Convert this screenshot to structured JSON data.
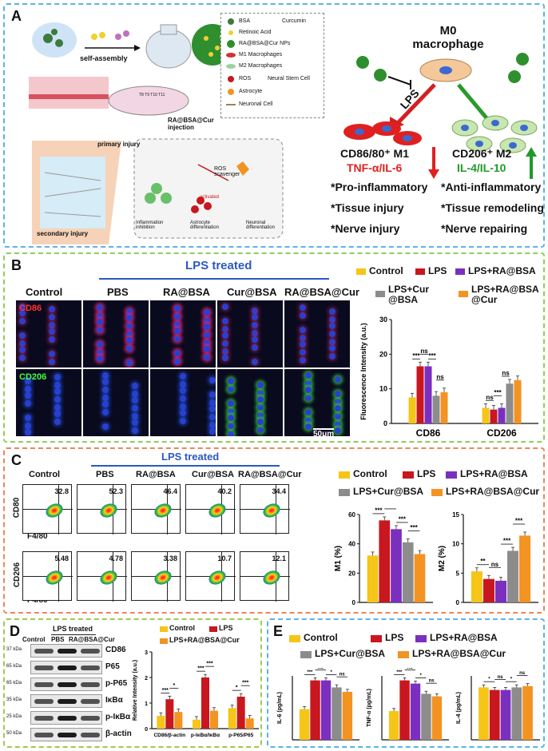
{
  "panel_a": {
    "label": "A",
    "assembly": {
      "arrow_label": "self-assembly",
      "legend": [
        "BSA",
        "Curcumin",
        "Retinoic Acid",
        "RA@BSA@Cur NPs",
        "M1 Macrophages",
        "M2 Macrophages",
        "ROS",
        "Neural Stem Cell",
        "Astrocyte",
        "Neuronal Cell"
      ],
      "mouse_label": "T8 T9 T10 T11",
      "injection": "RA@BSA@Cur injection",
      "primary": "primary injury",
      "secondary": "secondary injury",
      "scavenger": "ROS scavenger",
      "activated": "activated",
      "inflammation": "Inflammation inhibition",
      "astro_diff": "Astrocyte differentiation",
      "neuro_diff": "Neuronal differentiation"
    },
    "m0": "M0 macrophage",
    "lps": "LPS",
    "m1": {
      "title": "CD86/80⁺ M1",
      "cytokines": "TNF-α/IL-6",
      "items": [
        "*Pro-inflammatory",
        "*Tissue injury",
        "*Nerve injury"
      ]
    },
    "m2": {
      "title": "CD206⁺ M2",
      "cytokines": "IL-4/IL-10",
      "items": [
        "*Anti-inflammatory",
        "*Tissue remodeling",
        "*Nerve repairing"
      ]
    }
  },
  "panel_b": {
    "label": "B",
    "lps_treated": "LPS treated",
    "columns": [
      "Control",
      "PBS",
      "RA@BSA",
      "Cur@BSA",
      "RA@BSA@Cur"
    ],
    "rows": [
      "CD86",
      "CD206"
    ],
    "scale_bar": "50μm",
    "legend": [
      "Control",
      "LPS",
      "LPS+RA@BSA",
      "LPS+Cur @BSA",
      "LPS+RA@BSA @Cur"
    ]
  },
  "panel_c": {
    "label": "C",
    "lps_treated": "LPS treated",
    "columns": [
      "Control",
      "PBS",
      "RA@BSA",
      "Cur@BSA",
      "RA@BSA@Cur"
    ],
    "row1_axis": "CD80",
    "row2_axis": "CD206",
    "x_axis": "F4/80",
    "row1_values": [
      "32.8",
      "52.3",
      "46.4",
      "40.2",
      "34.4"
    ],
    "row2_values": [
      "5.48",
      "4.78",
      "3.38",
      "10.7",
      "12.1"
    ],
    "legend": [
      "Control",
      "LPS",
      "LPS+RA@BSA",
      "LPS+Cur@BSA",
      "LPS+RA@BSA@Cur"
    ]
  },
  "panel_d": {
    "label": "D",
    "lps_treated": "LPS treated",
    "columns": [
      "Control",
      "PBS",
      "RA@BSA@Cur"
    ],
    "bands": [
      {
        "kda": "37 kDa",
        "name": "CD86"
      },
      {
        "kda": "65 kDa",
        "name": "P65"
      },
      {
        "kda": "65 kDa",
        "name": "p-P65"
      },
      {
        "kda": "35 kDa",
        "name": "IκBα"
      },
      {
        "kda": "25 kDa",
        "name": "p-IκBα"
      },
      {
        "kda": "50 kDa",
        "name": "β-actin"
      }
    ],
    "legend": [
      "Control",
      "LPS",
      "LPS+RA@BSA@Cur"
    ]
  },
  "panel_e": {
    "label": "E",
    "legend": [
      "Control",
      "LPS",
      "LPS+RA@BSA",
      "LPS+Cur@BSA",
      "LPS+RA@BSA@Cur"
    ]
  },
  "colors": {
    "control": "#f5c518",
    "lps": "#c8171e",
    "ra": "#7b2fbf",
    "cur": "#8c8c8c",
    "rabsacur": "#f39322"
  },
  "chart_data": [
    {
      "type": "bar",
      "id": "B-fluorescence",
      "ylabel": "Fluorescence Intensity (a.u.)",
      "ylim": [
        0,
        30
      ],
      "yticks": [
        0,
        10,
        20,
        30
      ],
      "categories": [
        "CD86",
        "CD206"
      ],
      "series": [
        {
          "name": "Control",
          "values": [
            7.5,
            4.5
          ]
        },
        {
          "name": "LPS",
          "values": [
            16.5,
            4
          ]
        },
        {
          "name": "LPS+RA@BSA",
          "values": [
            16.5,
            4.5
          ]
        },
        {
          "name": "LPS+Cur @BSA",
          "values": [
            8,
            11.5
          ]
        },
        {
          "name": "LPS+RA@BSA @Cur",
          "values": [
            9,
            12.5
          ]
        }
      ],
      "annotations": [
        "***",
        "ns",
        "***",
        "ns",
        "ns",
        "***",
        "ns"
      ]
    },
    {
      "type": "bar",
      "id": "C-M1",
      "ylabel": "M1 (%)",
      "ylim": [
        0,
        60
      ],
      "yticks": [
        0,
        20,
        40,
        60
      ],
      "categories": [
        "M1"
      ],
      "series": [
        {
          "name": "Control",
          "values": [
            32
          ]
        },
        {
          "name": "LPS",
          "values": [
            56
          ]
        },
        {
          "name": "LPS+RA@BSA",
          "values": [
            50
          ]
        },
        {
          "name": "LPS+Cur@BSA",
          "values": [
            41
          ]
        },
        {
          "name": "LPS+RA@BSA@Cur",
          "values": [
            33
          ]
        }
      ],
      "annotations": [
        "***",
        "*",
        "***",
        "***"
      ]
    },
    {
      "type": "bar",
      "id": "C-M2",
      "ylabel": "M2 (%)",
      "ylim": [
        0,
        15
      ],
      "yticks": [
        0,
        5,
        10,
        15
      ],
      "categories": [
        "M2"
      ],
      "series": [
        {
          "name": "Control",
          "values": [
            5.3
          ]
        },
        {
          "name": "LPS",
          "values": [
            4.0
          ]
        },
        {
          "name": "LPS+RA@BSA",
          "values": [
            3.7
          ]
        },
        {
          "name": "LPS+Cur@BSA",
          "values": [
            8.8
          ]
        },
        {
          "name": "LPS+RA@BSA@Cur",
          "values": [
            11.4
          ]
        }
      ],
      "annotations": [
        "**",
        "ns",
        "***",
        "***"
      ]
    },
    {
      "type": "bar",
      "id": "D-relative",
      "ylabel": "Relative Intensity (a.u.)",
      "ylim": [
        0,
        3
      ],
      "yticks": [
        0,
        1,
        2,
        3
      ],
      "categories": [
        "CD86/β-actin",
        "p-IκBα/IκBα",
        "p-P65/P65"
      ],
      "series": [
        {
          "name": "Control",
          "values": [
            0.5,
            0.35,
            0.8
          ]
        },
        {
          "name": "LPS",
          "values": [
            1.15,
            2.0,
            1.25
          ]
        },
        {
          "name": "LPS+RA@BSA@Cur",
          "values": [
            0.65,
            0.7,
            0.4
          ]
        }
      ],
      "annotations": [
        "***",
        "*",
        "***",
        "***",
        "*",
        "***"
      ]
    },
    {
      "type": "bar",
      "id": "E-IL6",
      "ylabel": "IL-6 (pg/mL)",
      "ylim": [
        0,
        100
      ],
      "yticks": [],
      "categories": [
        "IL-6"
      ],
      "series": [
        {
          "name": "Control",
          "values": [
            48
          ]
        },
        {
          "name": "LPS",
          "values": [
            93
          ]
        },
        {
          "name": "LPS+RA@BSA",
          "values": [
            93
          ]
        },
        {
          "name": "LPS+Cur@BSA",
          "values": [
            82
          ]
        },
        {
          "name": "LPS+RA@BSA@Cur",
          "values": [
            75
          ]
        }
      ],
      "annotations": [
        "***",
        "ns",
        "*",
        "ns"
      ]
    },
    {
      "type": "bar",
      "id": "E-TNF",
      "ylabel": "TNF-α (pg/mL)",
      "ylim": [
        0,
        100
      ],
      "yticks": [],
      "categories": [
        "TNF-α"
      ],
      "series": [
        {
          "name": "Control",
          "values": [
            45
          ]
        },
        {
          "name": "LPS",
          "values": [
            93
          ]
        },
        {
          "name": "LPS+RA@BSA",
          "values": [
            88
          ]
        },
        {
          "name": "LPS+Cur@BSA",
          "values": [
            72
          ]
        },
        {
          "name": "LPS+RA@BSA@Cur",
          "values": [
            68
          ]
        }
      ],
      "annotations": [
        "***",
        "ns",
        "*",
        "ns"
      ]
    },
    {
      "type": "bar",
      "id": "E-IL4",
      "ylabel": "IL-4 (pg/mL)",
      "ylim": [
        0,
        100
      ],
      "yticks": [],
      "categories": [
        "IL-4"
      ],
      "series": [
        {
          "name": "Control",
          "values": [
            82
          ]
        },
        {
          "name": "LPS",
          "values": [
            78
          ]
        },
        {
          "name": "LPS+RA@BSA",
          "values": [
            78
          ]
        },
        {
          "name": "LPS+Cur@BSA",
          "values": [
            82
          ]
        },
        {
          "name": "LPS+RA@BSA@Cur",
          "values": [
            84
          ]
        }
      ],
      "annotations": [
        "*",
        "ns",
        "*",
        "ns"
      ]
    }
  ]
}
